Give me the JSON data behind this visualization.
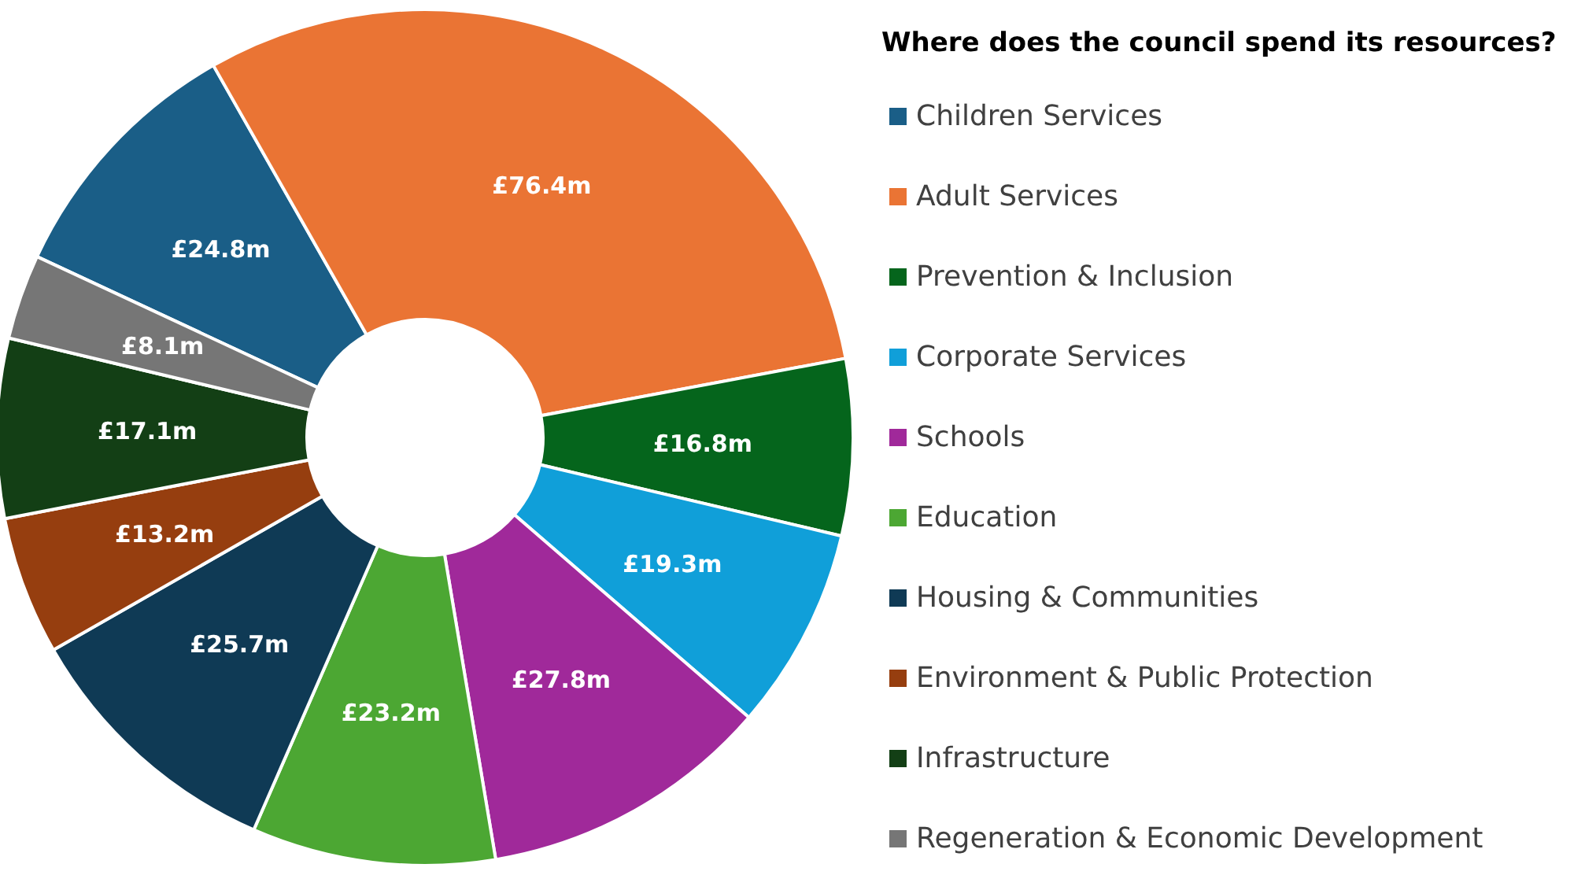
{
  "chart_data": {
    "type": "donut",
    "title": "Where does the council spend its resources?",
    "categories": [
      "Children Services",
      "Adult Services",
      "Prevention & Inclusion",
      "Corporate Services",
      "Schools",
      "Education",
      "Housing & Communities",
      "Environment & Public Protection",
      "Infrastructure",
      "Regeneration & Economic Development"
    ],
    "values": [
      24.8,
      76.4,
      16.8,
      19.3,
      27.8,
      23.2,
      25.7,
      13.2,
      17.1,
      8.1
    ],
    "value_labels": [
      "£24.8m",
      "£76.4m",
      "£16.8m",
      "£19.3m",
      "£27.8m",
      "£23.2m",
      "£25.7m",
      "£13.2m",
      "£17.1m",
      "£8.1m"
    ],
    "colors": [
      "#1a5e87",
      "#ea7434",
      "#05651c",
      "#109fd9",
      "#a0299a",
      "#4ca733",
      "#0f3a55",
      "#963e0f",
      "#133f15",
      "#767676"
    ],
    "legend": "right"
  }
}
